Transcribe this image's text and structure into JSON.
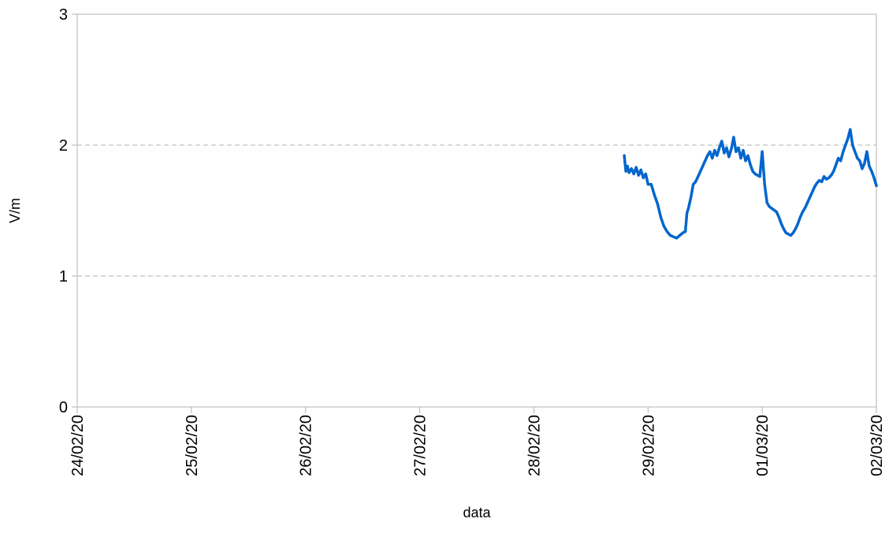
{
  "chart_data": {
    "type": "line",
    "title": "",
    "xlabel": "data",
    "ylabel": "V/m",
    "ylim": [
      0,
      3
    ],
    "yticks": [
      0,
      1,
      2,
      3
    ],
    "xlim": [
      "24/02/20",
      "02/03/20"
    ],
    "xtick_labels": [
      "24/02/20",
      "25/02/20",
      "26/02/20",
      "27/02/20",
      "28/02/20",
      "29/02/20",
      "01/03/20",
      "02/03/20"
    ],
    "grid": "horizontal dashed",
    "legend": "none",
    "line_color": "#0066cc",
    "series": [
      {
        "points": [
          [
            "28/02/20 19:00",
            1.92
          ],
          [
            "28/02/20 19:20",
            1.8
          ],
          [
            "28/02/20 19:40",
            1.84
          ],
          [
            "28/02/20 20:00",
            1.79
          ],
          [
            "28/02/20 20:30",
            1.82
          ],
          [
            "28/02/20 21:00",
            1.78
          ],
          [
            "28/02/20 21:30",
            1.83
          ],
          [
            "28/02/20 22:00",
            1.77
          ],
          [
            "28/02/20 22:30",
            1.81
          ],
          [
            "28/02/20 23:00",
            1.75
          ],
          [
            "28/02/20 23:30",
            1.78
          ],
          [
            "29/02/20 00:00",
            1.7
          ],
          [
            "29/02/20 00:40",
            1.7
          ],
          [
            "29/02/20 01:20",
            1.62
          ],
          [
            "29/02/20 02:00",
            1.55
          ],
          [
            "29/02/20 02:40",
            1.45
          ],
          [
            "29/02/20 03:20",
            1.38
          ],
          [
            "29/02/20 04:00",
            1.34
          ],
          [
            "29/02/20 04:40",
            1.31
          ],
          [
            "29/02/20 05:20",
            1.3
          ],
          [
            "29/02/20 06:00",
            1.29
          ],
          [
            "29/02/20 06:40",
            1.31
          ],
          [
            "29/02/20 07:20",
            1.33
          ],
          [
            "29/02/20 07:50",
            1.34
          ],
          [
            "29/02/20 08:10",
            1.48
          ],
          [
            "29/02/20 08:30",
            1.52
          ],
          [
            "29/02/20 09:00",
            1.6
          ],
          [
            "29/02/20 09:30",
            1.7
          ],
          [
            "29/02/20 10:00",
            1.72
          ],
          [
            "29/02/20 10:30",
            1.76
          ],
          [
            "29/02/20 11:00",
            1.8
          ],
          [
            "29/02/20 11:30",
            1.84
          ],
          [
            "29/02/20 12:00",
            1.88
          ],
          [
            "29/02/20 12:30",
            1.92
          ],
          [
            "29/02/20 13:00",
            1.95
          ],
          [
            "29/02/20 13:30",
            1.9
          ],
          [
            "29/02/20 14:00",
            1.96
          ],
          [
            "29/02/20 14:30",
            1.92
          ],
          [
            "29/02/20 15:00",
            1.98
          ],
          [
            "29/02/20 15:30",
            2.03
          ],
          [
            "29/02/20 16:00",
            1.94
          ],
          [
            "29/02/20 16:30",
            1.98
          ],
          [
            "29/02/20 17:00",
            1.91
          ],
          [
            "29/02/20 17:30",
            1.97
          ],
          [
            "29/02/20 18:00",
            2.06
          ],
          [
            "29/02/20 18:30",
            1.95
          ],
          [
            "29/02/20 19:00",
            1.98
          ],
          [
            "29/02/20 19:30",
            1.9
          ],
          [
            "29/02/20 20:00",
            1.96
          ],
          [
            "29/02/20 20:30",
            1.88
          ],
          [
            "29/02/20 21:00",
            1.92
          ],
          [
            "29/02/20 21:30",
            1.85
          ],
          [
            "29/02/20 22:00",
            1.8
          ],
          [
            "29/02/20 22:30",
            1.78
          ],
          [
            "29/02/20 23:00",
            1.77
          ],
          [
            "29/02/20 23:30",
            1.76
          ],
          [
            "01/03/20 00:00",
            1.95
          ],
          [
            "01/03/20 00:30",
            1.7
          ],
          [
            "01/03/20 01:00",
            1.56
          ],
          [
            "01/03/20 01:30",
            1.53
          ],
          [
            "01/03/20 03:00",
            1.49
          ],
          [
            "01/03/20 03:30",
            1.45
          ],
          [
            "01/03/20 04:00",
            1.4
          ],
          [
            "01/03/20 04:30",
            1.36
          ],
          [
            "01/03/20 05:00",
            1.33
          ],
          [
            "01/03/20 05:30",
            1.32
          ],
          [
            "01/03/20 06:00",
            1.31
          ],
          [
            "01/03/20 06:30",
            1.33
          ],
          [
            "01/03/20 07:00",
            1.36
          ],
          [
            "01/03/20 07:30",
            1.4
          ],
          [
            "01/03/20 08:00",
            1.45
          ],
          [
            "01/03/20 08:30",
            1.49
          ],
          [
            "01/03/20 09:00",
            1.52
          ],
          [
            "01/03/20 09:30",
            1.56
          ],
          [
            "01/03/20 10:00",
            1.6
          ],
          [
            "01/03/20 10:30",
            1.64
          ],
          [
            "01/03/20 11:00",
            1.68
          ],
          [
            "01/03/20 11:30",
            1.71
          ],
          [
            "01/03/20 12:00",
            1.73
          ],
          [
            "01/03/20 12:30",
            1.72
          ],
          [
            "01/03/20 13:00",
            1.76
          ],
          [
            "01/03/20 13:30",
            1.74
          ],
          [
            "01/03/20 14:00",
            1.75
          ],
          [
            "01/03/20 14:30",
            1.77
          ],
          [
            "01/03/20 15:00",
            1.8
          ],
          [
            "01/03/20 15:30",
            1.85
          ],
          [
            "01/03/20 16:00",
            1.9
          ],
          [
            "01/03/20 16:30",
            1.88
          ],
          [
            "01/03/20 17:00",
            1.95
          ],
          [
            "01/03/20 17:30",
            2.0
          ],
          [
            "01/03/20 18:00",
            2.05
          ],
          [
            "01/03/20 18:30",
            2.12
          ],
          [
            "01/03/20 19:00",
            2.0
          ],
          [
            "01/03/20 19:30",
            1.95
          ],
          [
            "01/03/20 20:00",
            1.9
          ],
          [
            "01/03/20 20:30",
            1.88
          ],
          [
            "01/03/20 21:00",
            1.82
          ],
          [
            "01/03/20 21:30",
            1.86
          ],
          [
            "01/03/20 22:00",
            1.95
          ],
          [
            "01/03/20 22:30",
            1.84
          ],
          [
            "01/03/20 23:00",
            1.8
          ],
          [
            "01/03/20 23:30",
            1.75
          ],
          [
            "02/03/20 00:00",
            1.69
          ]
        ]
      }
    ]
  }
}
